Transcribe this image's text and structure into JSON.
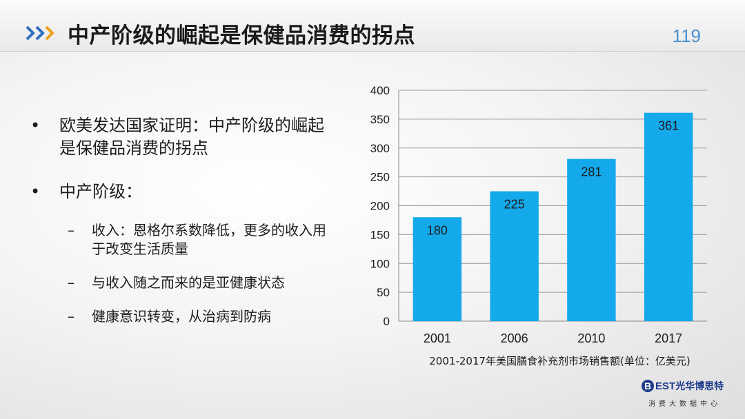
{
  "header": {
    "title": "中产阶级的崛起是保健品消费的拐点",
    "page_number": "119",
    "icon": "triple-chevron-icon",
    "accent_color": "#4a8fd0"
  },
  "bullets": [
    {
      "level": 1,
      "lines": [
        "欧美发达国家证明：中产阶级的崛起",
        "是保健品消费的拐点"
      ]
    },
    {
      "level": 1,
      "lines": [
        "中产阶级："
      ]
    },
    {
      "level": 2,
      "lines": [
        "收入：恩格尔系数降低，更多的收入用",
        "于改变生活质量"
      ]
    },
    {
      "level": 2,
      "lines": [
        "与收入随之而来的是亚健康状态"
      ]
    },
    {
      "level": 2,
      "lines": [
        "健康意识转变，从治病到防病"
      ]
    }
  ],
  "bullet_symbol": "•",
  "dash_symbol": "–",
  "chart_data": {
    "type": "bar",
    "categories": [
      "2001",
      "2006",
      "2010",
      "2017"
    ],
    "values": [
      180,
      225,
      281,
      361
    ],
    "data_labels": [
      "180",
      "225",
      "281",
      "361"
    ],
    "title": "",
    "xlabel": "2001-2017年美国膳食补充剂市场销售额(单位：亿美元)",
    "ylabel": "",
    "ylim": [
      0,
      400
    ],
    "yticks": [
      "0",
      "50",
      "100",
      "150",
      "200",
      "250",
      "300",
      "350",
      "400"
    ],
    "grid": true,
    "bar_color": "#13a9ea"
  },
  "logo": {
    "mark": "B",
    "brand": "EST",
    "name": "光华博思特",
    "tagline": "消费大数据中心"
  }
}
